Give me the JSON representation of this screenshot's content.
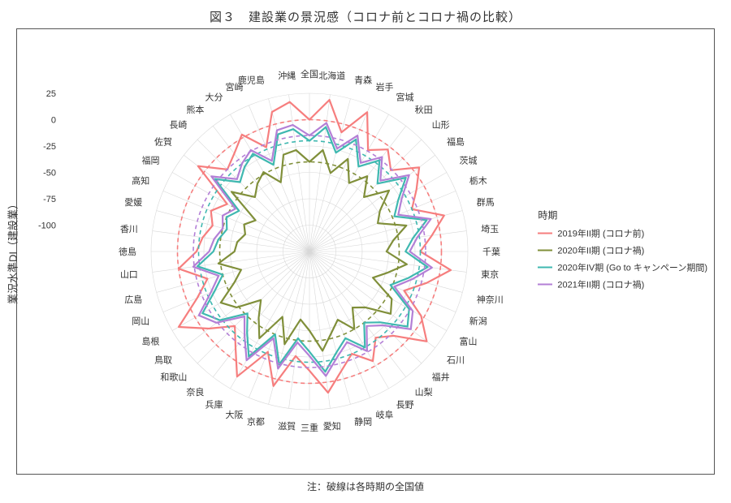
{
  "title": "図３　建設業の景況感（コロナ前とコロナ禍の比較）",
  "footnote": "注：破線は各時期の全国値",
  "y_axis_label": "業況水準DI（建設業）",
  "legend_title": "時期",
  "chart": {
    "type": "radar",
    "background_color": "#ffffff",
    "grid_color": "#d8d8d8",
    "label_fontsize": 11,
    "tick_fontsize": 11,
    "categories": [
      "全国",
      "北海道",
      "青森",
      "岩手",
      "宮城",
      "秋田",
      "山形",
      "福島",
      "茨城",
      "栃木",
      "群馬",
      "埼玉",
      "千葉",
      "東京",
      "神奈川",
      "新潟",
      "富山",
      "石川",
      "福井",
      "山梨",
      "長野",
      "岐阜",
      "静岡",
      "愛知",
      "三重",
      "滋賀",
      "京都",
      "大阪",
      "兵庫",
      "奈良",
      "和歌山",
      "鳥取",
      "島根",
      "岡山",
      "広島",
      "山口",
      "徳島",
      "香川",
      "愛媛",
      "高知",
      "福岡",
      "佐賀",
      "長崎",
      "熊本",
      "大分",
      "宮崎",
      "鹿児島",
      "沖縄"
    ],
    "axis": {
      "min": -125,
      "max": 25,
      "ticks": [
        -100,
        -75,
        -50,
        -25,
        0,
        25
      ]
    },
    "series": [
      {
        "name": "2019年II期 (コロナ前)",
        "color": "#f67e7e",
        "national": 0,
        "values": [
          0,
          20,
          -8,
          18,
          -14,
          -3,
          -16,
          6,
          -8,
          -20,
          7,
          -8,
          -20,
          10,
          -10,
          -28,
          -3,
          15,
          -12,
          -22,
          -5,
          -20,
          -8,
          10,
          -12,
          -25,
          7,
          -22,
          12,
          -10,
          -25,
          -5,
          18,
          -10,
          -25,
          0,
          -18,
          -23,
          -30,
          -24,
          -35,
          8,
          -15,
          -8,
          3,
          -18,
          12,
          18
        ]
      },
      {
        "name": "2020年II期 (コロナ禍)",
        "color": "#808f3a",
        "national": -40,
        "values": [
          -40,
          -28,
          -48,
          -30,
          -50,
          -35,
          -52,
          -30,
          -48,
          -55,
          -30,
          -45,
          -52,
          -32,
          -48,
          -60,
          -35,
          -28,
          -50,
          -58,
          -40,
          -55,
          -45,
          -30,
          -50,
          -60,
          -34,
          -58,
          -30,
          -46,
          -60,
          -38,
          -28,
          -48,
          -58,
          -38,
          -54,
          -56,
          -62,
          -58,
          -66,
          -32,
          -52,
          -44,
          -38,
          -54,
          -30,
          -28
        ]
      },
      {
        "name": "2020年IV期 (Go to キャンペーン期間)",
        "color": "#3fb8b0",
        "national": -20,
        "values": [
          -20,
          -6,
          -28,
          -10,
          -32,
          -16,
          -34,
          -10,
          -28,
          -38,
          -10,
          -26,
          -34,
          -12,
          -28,
          -42,
          -16,
          -8,
          -30,
          -40,
          -20,
          -36,
          -26,
          -10,
          -30,
          -42,
          -14,
          -40,
          -10,
          -28,
          -42,
          -18,
          -8,
          -28,
          -40,
          -18,
          -34,
          -38,
          -44,
          -40,
          -48,
          -12,
          -32,
          -24,
          -18,
          -36,
          -10,
          -8
        ]
      },
      {
        "name": "2021年II期 (コロナ禍)",
        "color": "#b37fd6",
        "national": -15,
        "values": [
          -15,
          -2,
          -24,
          -6,
          -28,
          -12,
          -30,
          -6,
          -24,
          -34,
          -6,
          -22,
          -30,
          -8,
          -24,
          -38,
          -12,
          -4,
          -26,
          -36,
          -16,
          -32,
          -22,
          -6,
          -26,
          -38,
          -10,
          -36,
          -6,
          -24,
          -38,
          -14,
          -4,
          -24,
          -36,
          -14,
          -30,
          -34,
          -40,
          -36,
          -44,
          -8,
          -28,
          -20,
          -14,
          -32,
          -6,
          -4
        ]
      }
    ]
  }
}
